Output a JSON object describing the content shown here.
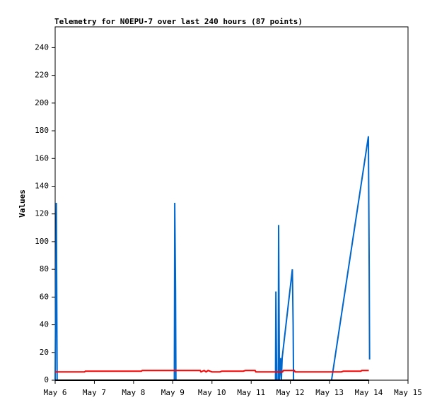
{
  "chart_data": {
    "type": "line",
    "title": "Telemetry for N0EPU-7 over last 240 hours (87 points)",
    "y_label": "Values",
    "xlim": [
      6,
      15
    ],
    "xticks": [
      {
        "value": 6,
        "label": "May 6"
      },
      {
        "value": 7,
        "label": "May 7"
      },
      {
        "value": 8,
        "label": "May 8"
      },
      {
        "value": 9,
        "label": "May 9"
      },
      {
        "value": 10,
        "label": "May 10"
      },
      {
        "value": 11,
        "label": "May 11"
      },
      {
        "value": 12,
        "label": "May 12"
      },
      {
        "value": 13,
        "label": "May 13"
      },
      {
        "value": 14,
        "label": "May 14"
      },
      {
        "value": 15,
        "label": "May 15"
      }
    ],
    "ylim": [
      0,
      255
    ],
    "yticks": [
      0,
      20,
      40,
      60,
      80,
      100,
      120,
      140,
      160,
      180,
      200,
      220,
      240
    ],
    "series": [
      {
        "color": "#0066cc",
        "x": [
          6.0,
          6.03,
          6.05,
          9.04,
          9.05,
          9.07,
          9.08,
          11.62,
          11.63,
          11.65,
          11.69,
          11.7,
          11.72,
          11.75,
          11.77,
          11.79,
          12.05,
          12.07,
          12.08,
          13.05,
          13.99,
          14.01,
          14.02
        ],
        "values": [
          0,
          128,
          0,
          0,
          128,
          65,
          0,
          0,
          64,
          0,
          0,
          112,
          0,
          16,
          0,
          16,
          80,
          40,
          0,
          0,
          176,
          80,
          15
        ]
      },
      {
        "color": "#ff0000",
        "x": [
          6.0,
          6.75,
          6.77,
          8.2,
          8.22,
          9.7,
          9.72,
          9.8,
          9.85,
          9.9,
          10.0,
          10.2,
          10.25,
          10.8,
          10.85,
          11.1,
          11.12,
          11.8,
          11.82,
          12.1,
          12.12,
          13.3,
          13.35,
          13.8,
          13.82,
          14.0
        ],
        "values": [
          6,
          6,
          6.5,
          6.5,
          7,
          7,
          6,
          7,
          6,
          7,
          6,
          6,
          6.5,
          6.5,
          7,
          7,
          6,
          6,
          7,
          7,
          6,
          6,
          6.5,
          6.5,
          7,
          7
        ]
      },
      {
        "color": "#000000",
        "x": [
          6.0,
          14.0
        ],
        "values": [
          0,
          0
        ]
      }
    ]
  }
}
